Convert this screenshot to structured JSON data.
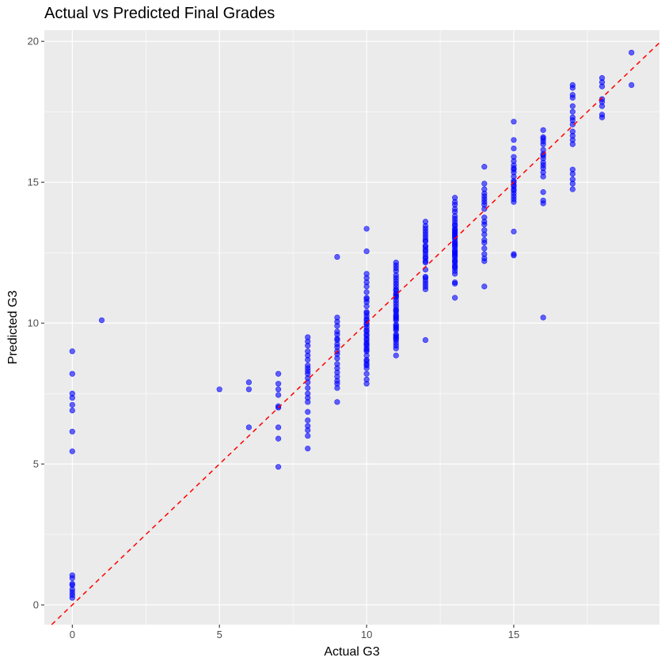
{
  "chart_data": {
    "type": "scatter",
    "title": "Actual vs Predicted Final Grades",
    "xlabel": "Actual G3",
    "ylabel": "Predicted G3",
    "xlim": [
      -0.95,
      19.95
    ],
    "ylim": [
      -0.7,
      20.4
    ],
    "x_ticks": [
      0,
      5,
      10,
      15
    ],
    "x_tick_labels": [
      "0",
      "5",
      "10",
      "15"
    ],
    "y_ticks": [
      0,
      5,
      10,
      15,
      20
    ],
    "y_tick_labels": [
      "0",
      "5",
      "10",
      "15",
      "20"
    ],
    "grid": true,
    "legend": "none",
    "point_color": "#0000ff",
    "point_opacity": 0.6,
    "reference_line": {
      "slope": 1,
      "intercept": 0,
      "color": "#ff0000",
      "style": "dashed"
    },
    "series": [
      {
        "x": [
          0,
          0,
          0,
          0,
          0,
          0,
          0,
          0,
          0,
          0,
          0,
          0,
          0,
          0,
          0,
          0,
          1,
          5,
          6,
          6,
          6,
          7,
          7,
          7,
          7,
          7,
          7,
          7,
          7,
          7,
          8,
          8,
          8,
          8,
          8,
          8,
          8,
          8,
          8,
          8,
          8,
          8,
          8,
          8,
          8,
          8,
          8,
          8,
          8,
          8,
          8,
          8,
          9,
          9,
          9,
          9,
          9,
          9,
          9,
          9,
          9,
          9,
          9,
          9,
          9,
          9,
          9,
          9,
          9,
          9,
          9,
          9,
          9,
          10,
          10,
          10,
          10,
          10,
          10,
          10,
          10,
          10,
          10,
          10,
          10,
          10,
          10,
          10,
          10,
          10,
          10,
          10,
          10,
          10,
          10,
          10,
          10,
          10,
          10,
          10,
          10,
          10,
          10,
          10,
          10,
          10,
          10,
          10,
          10,
          10,
          10,
          10,
          10,
          11,
          11,
          11,
          11,
          11,
          11,
          11,
          11,
          11,
          11,
          11,
          11,
          11,
          11,
          11,
          11,
          11,
          11,
          11,
          11,
          11,
          11,
          11,
          11,
          11,
          11,
          11,
          11,
          11,
          11,
          11,
          11,
          11,
          11,
          11,
          11,
          11,
          11,
          11,
          11,
          12,
          12,
          12,
          12,
          12,
          12,
          12,
          12,
          12,
          12,
          12,
          12,
          12,
          12,
          12,
          12,
          12,
          12,
          12,
          12,
          12,
          12,
          12,
          12,
          12,
          13,
          13,
          13,
          13,
          13,
          13,
          13,
          13,
          13,
          13,
          13,
          13,
          13,
          13,
          13,
          13,
          13,
          13,
          13,
          13,
          13,
          13,
          13,
          13,
          13,
          13,
          13,
          13,
          13,
          13,
          13,
          13,
          13,
          13,
          13,
          13,
          13,
          13,
          13,
          13,
          14,
          14,
          14,
          14,
          14,
          14,
          14,
          14,
          14,
          14,
          14,
          14,
          14,
          14,
          14,
          14,
          14,
          14,
          14,
          14,
          14,
          15,
          15,
          15,
          15,
          15,
          15,
          15,
          15,
          15,
          15,
          15,
          15,
          15,
          15,
          15,
          15,
          15,
          15,
          15,
          15,
          15,
          15,
          15,
          16,
          16,
          16,
          16,
          16,
          16,
          16,
          16,
          16,
          16,
          16,
          16,
          16,
          16,
          16,
          16,
          16,
          16,
          17,
          17,
          17,
          17,
          17,
          17,
          17,
          17,
          17,
          17,
          17,
          17,
          17,
          17,
          17,
          17,
          17,
          17,
          18,
          18,
          18,
          18,
          18,
          18,
          18,
          18,
          19,
          19
        ],
        "y": [
          9.0,
          8.2,
          7.5,
          7.35,
          7.1,
          6.9,
          6.15,
          5.45,
          1.05,
          0.95,
          0.75,
          0.7,
          0.55,
          0.45,
          0.35,
          0.25,
          10.1,
          7.65,
          7.9,
          7.65,
          6.3,
          8.2,
          7.85,
          7.65,
          7.45,
          7.05,
          6.3,
          5.9,
          4.9,
          7.0,
          9.5,
          9.35,
          9.2,
          9.0,
          8.85,
          8.7,
          8.5,
          8.4,
          8.3,
          8.2,
          8.05,
          7.9,
          7.7,
          7.5,
          7.2,
          6.85,
          6.55,
          6.35,
          6.2,
          6.0,
          5.55,
          7.35,
          12.35,
          10.2,
          10.05,
          9.9,
          9.7,
          9.4,
          9.25,
          9.15,
          9.0,
          8.9,
          8.75,
          8.55,
          8.4,
          8.25,
          8.1,
          7.95,
          7.85,
          7.7,
          7.2,
          9.6,
          9.45,
          13.35,
          12.55,
          11.75,
          11.6,
          11.3,
          11.1,
          10.9,
          10.75,
          10.6,
          10.4,
          10.25,
          10.1,
          10.0,
          9.85,
          9.7,
          9.55,
          9.4,
          9.3,
          9.2,
          9.1,
          9.0,
          8.85,
          8.65,
          8.5,
          8.4,
          8.2,
          8.0,
          7.85,
          11.45,
          10.85,
          10.35,
          10.15,
          9.95,
          9.75,
          9.6,
          9.45,
          9.25,
          9.05,
          8.7,
          8.55,
          12.15,
          12.05,
          11.85,
          11.7,
          11.5,
          11.4,
          11.2,
          11.05,
          10.9,
          10.7,
          10.6,
          10.4,
          10.25,
          10.1,
          9.9,
          9.75,
          9.6,
          9.45,
          9.3,
          9.1,
          8.85,
          11.95,
          11.6,
          11.3,
          11.15,
          10.95,
          10.8,
          10.5,
          10.3,
          10.15,
          9.95,
          9.8,
          9.55,
          9.4,
          9.2,
          11.0,
          10.45,
          10.2,
          9.85,
          9.5,
          13.6,
          13.45,
          13.25,
          13.05,
          12.9,
          12.75,
          12.6,
          12.45,
          12.3,
          12.15,
          11.9,
          11.65,
          11.5,
          11.3,
          11.2,
          9.4,
          13.35,
          12.95,
          12.55,
          12.35,
          11.6,
          11.4,
          13.15,
          12.7,
          12.2,
          14.45,
          14.3,
          14.05,
          13.8,
          13.6,
          13.45,
          13.3,
          13.15,
          13.0,
          12.85,
          12.7,
          12.55,
          12.4,
          12.25,
          12.05,
          11.85,
          11.45,
          11.4,
          10.9,
          14.2,
          13.95,
          13.7,
          13.5,
          13.35,
          13.2,
          13.05,
          12.9,
          12.75,
          12.6,
          12.5,
          12.35,
          12.15,
          11.95,
          13.25,
          13.1,
          12.8,
          12.45,
          12.2,
          12.0,
          11.75,
          15.55,
          14.95,
          14.75,
          14.6,
          14.4,
          14.3,
          14.2,
          14.05,
          13.75,
          13.5,
          13.3,
          13.15,
          12.95,
          12.65,
          12.45,
          12.3,
          12.2,
          11.3,
          14.5,
          13.6,
          12.85,
          17.15,
          16.2,
          15.9,
          15.6,
          15.5,
          15.35,
          15.2,
          15.05,
          14.9,
          14.75,
          14.6,
          14.5,
          14.3,
          13.25,
          12.45,
          12.4,
          15.45,
          15.0,
          14.85,
          14.7,
          14.4,
          15.75,
          16.5,
          16.85,
          16.55,
          16.35,
          16.15,
          15.95,
          15.7,
          15.5,
          15.35,
          15.2,
          14.65,
          14.35,
          14.25,
          10.2,
          16.45,
          16.0,
          15.85,
          15.6,
          16.6,
          18.45,
          18.35,
          18.0,
          17.7,
          17.5,
          17.3,
          17.05,
          16.8,
          16.5,
          16.35,
          15.45,
          15.3,
          15.1,
          14.95,
          14.75,
          17.2,
          16.65,
          18.1,
          18.7,
          18.55,
          18.4,
          17.95,
          17.7,
          17.4,
          17.3,
          17.85,
          19.6,
          18.45
        ]
      }
    ]
  }
}
